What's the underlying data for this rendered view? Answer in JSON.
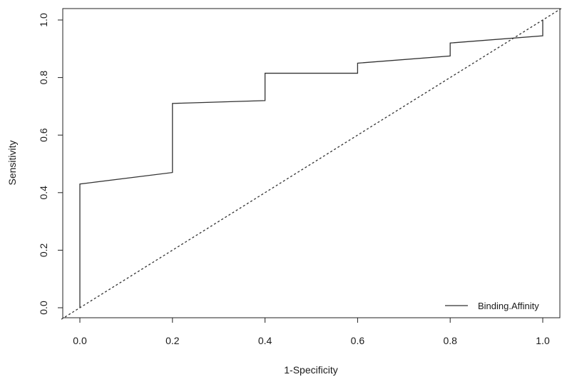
{
  "chart_data": {
    "type": "line",
    "xlabel": "1-Specificity",
    "ylabel": "Sensitivity",
    "xlim": [
      0.0,
      1.0
    ],
    "ylim": [
      0.0,
      1.0
    ],
    "x_ticks": [
      "0.0",
      "0.2",
      "0.4",
      "0.6",
      "0.8",
      "1.0"
    ],
    "y_ticks": [
      "0.0",
      "0.2",
      "0.4",
      "0.6",
      "0.8",
      "1.0"
    ],
    "grid": false,
    "legend_position": "bottom-right",
    "series": [
      {
        "name": "Binding.Affinity",
        "style": "solid",
        "color": "#333333",
        "x": [
          0.0,
          0.0,
          0.2,
          0.2,
          0.4,
          0.4,
          0.6,
          0.6,
          0.8,
          0.8,
          1.0,
          1.0
        ],
        "y": [
          0.0,
          0.43,
          0.47,
          0.71,
          0.72,
          0.815,
          0.815,
          0.85,
          0.875,
          0.92,
          0.945,
          1.0
        ]
      }
    ],
    "reference_line": {
      "style": "dashed",
      "color": "#333333",
      "x": [
        0.0,
        1.0
      ],
      "y": [
        0.0,
        1.0
      ]
    }
  }
}
